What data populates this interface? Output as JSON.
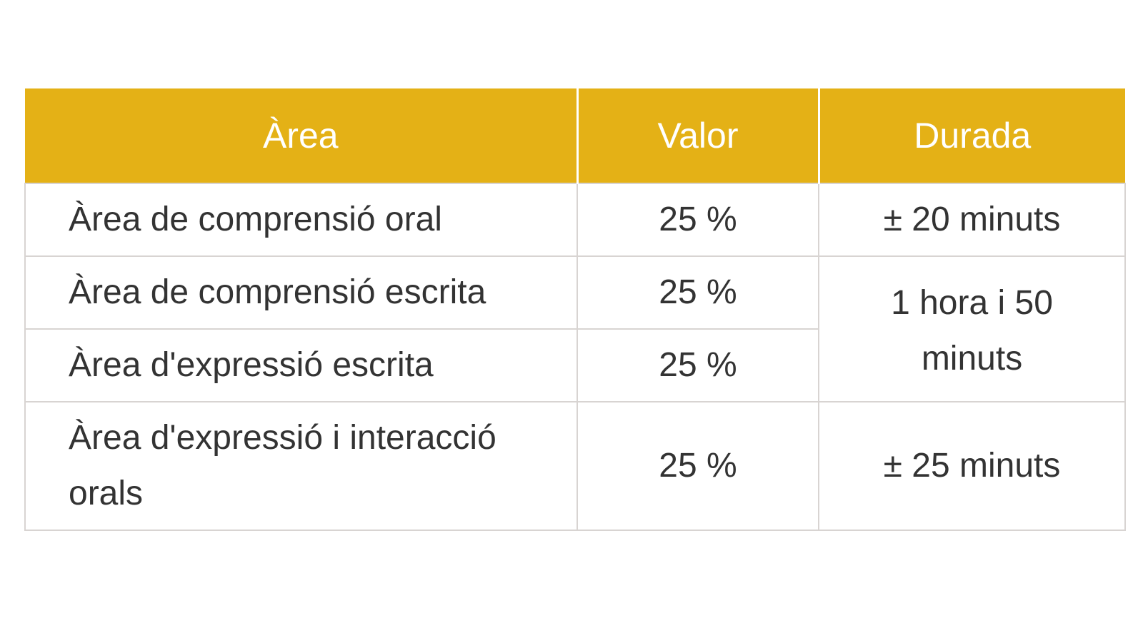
{
  "table": {
    "headers": {
      "area": "Àrea",
      "valor": "Valor",
      "durada": "Durada"
    },
    "rows": [
      {
        "area": "Àrea de comprensió oral",
        "valor": "25 %",
        "durada": "± 20 minuts"
      },
      {
        "area": "Àrea de comprensió escrita",
        "valor": "25 %",
        "durada": "1 hora i 50 minuts"
      },
      {
        "area": "Àrea d'expressió escrita",
        "valor": "25 %"
      },
      {
        "area": "Àrea d'expressió i interacció orals",
        "valor": "25 %",
        "durada": "± 25 minuts"
      }
    ]
  },
  "colors": {
    "header_background": "#e4b116",
    "header_text": "#ffffff",
    "body_text": "#333333",
    "border": "#d8d4d2"
  }
}
